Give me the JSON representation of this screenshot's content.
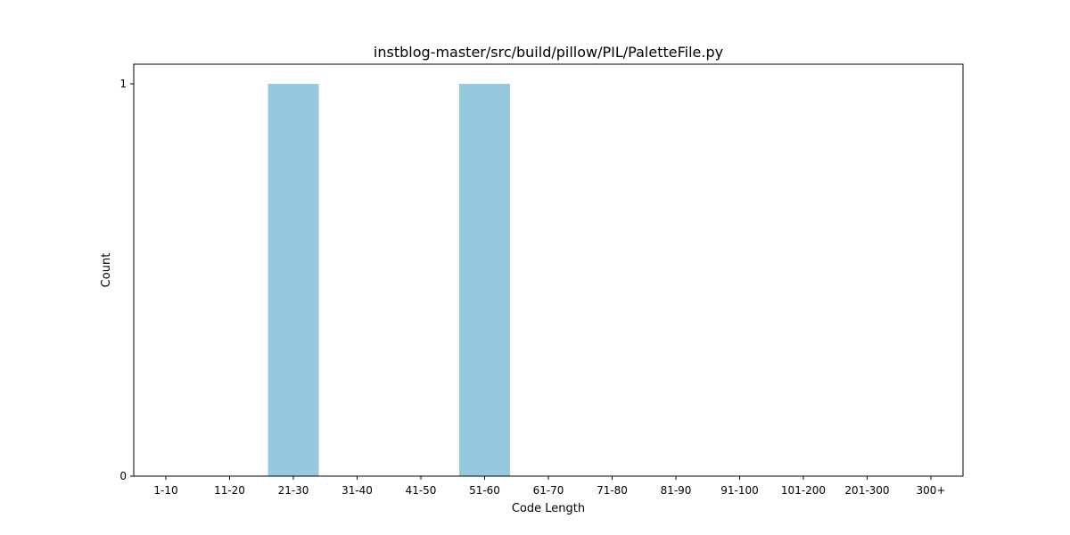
{
  "chart_data": {
    "type": "bar",
    "title": "instblog-master/src/build/pillow/PIL/PaletteFile.py",
    "xlabel": "Code Length",
    "ylabel": "Count",
    "categories": [
      "1-10",
      "11-20",
      "21-30",
      "31-40",
      "41-50",
      "51-60",
      "61-70",
      "71-80",
      "81-90",
      "91-100",
      "101-200",
      "201-300",
      "300+"
    ],
    "values": [
      0,
      0,
      1,
      0,
      0,
      1,
      0,
      0,
      0,
      0,
      0,
      0,
      0
    ],
    "yticks": [
      "0",
      "1"
    ],
    "ylim": [
      0,
      1
    ],
    "grid": false,
    "bar_color": "#96c9de"
  }
}
